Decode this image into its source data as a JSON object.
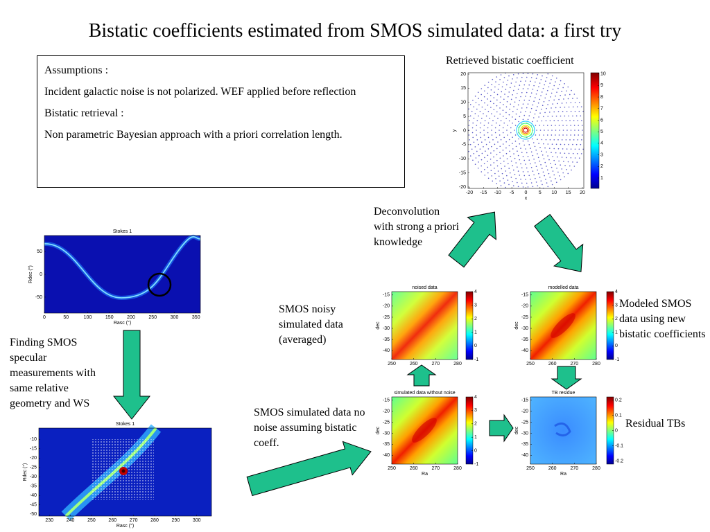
{
  "title": "Bistatic coefficients estimated from SMOS simulated data: a first try",
  "assumptions": [
    "Assumptions :",
    "Incident galactic noise is not polarized. WEF applied before reflection",
    "Bistatic retrieval :",
    "Non parametric Bayesian approach with a priori correlation length."
  ],
  "annotations": {
    "retrieved": "Retrieved bistatic coefficient",
    "deconvolution": "Deconvolution with strong a priori knowledge",
    "noisy": "SMOS noisy simulated data (averaged)",
    "modeled": "Modeled SMOS data using new bistatic coefficients",
    "finding": "Finding SMOS specular measurements with same relative geometry and WS",
    "no_noise": "SMOS simulated data no noise assuming bistatic coeff.",
    "residual": "Residual TBs"
  },
  "plots": [
    {
      "xlabel": "x",
      "ylabel": "y",
      "xlim": [
        -20.5,
        20.5
      ],
      "ylim": [
        -20.5,
        20.5
      ],
      "xticks": [
        -20,
        -15,
        -10,
        -5,
        0,
        5,
        10,
        15,
        20
      ],
      "yticks": [
        -20,
        -15,
        -10,
        -5,
        0,
        5,
        10,
        15,
        20
      ],
      "clim": [
        0.1,
        10.1
      ],
      "cticks": [
        1,
        2,
        3,
        4,
        5,
        6,
        7,
        8,
        9,
        10
      ]
    },
    {
      "title": "Stokes 1",
      "xlabel": "Rasc (°)",
      "ylabel": "Rdec (°)",
      "xlim": [
        0,
        360
      ],
      "ylim": [
        -85,
        85
      ],
      "xticks": [
        0,
        50,
        100,
        150,
        200,
        250,
        300,
        350
      ],
      "yticks": [
        -50,
        0,
        50
      ]
    },
    {
      "title": "Stokes 1",
      "xlabel": "Rasc (°)",
      "ylabel": "Rdec (°)",
      "xlim": [
        225,
        307
      ],
      "ylim": [
        -51,
        -4
      ],
      "xticks": [
        230,
        240,
        250,
        260,
        270,
        280,
        290,
        300
      ],
      "yticks": [
        -50,
        -45,
        -40,
        -35,
        -30,
        -25,
        -20,
        -15,
        -10
      ]
    },
    {
      "title": "noised data",
      "ylabel": "dec",
      "xlim": [
        250,
        280
      ],
      "ylim": [
        -44,
        -13.5
      ],
      "xticks": [
        250,
        260,
        270,
        280
      ],
      "yticks": [
        -40,
        -35,
        -30,
        -25,
        -20,
        -15
      ],
      "clim": [
        -1,
        4
      ],
      "cticks": [
        -1,
        0,
        1,
        2,
        3,
        4
      ]
    },
    {
      "title": "modelled data",
      "ylabel": "dec",
      "xlim": [
        250,
        280
      ],
      "ylim": [
        -44,
        -13.5
      ],
      "xticks": [
        250,
        260,
        270,
        280
      ],
      "yticks": [
        -40,
        -35,
        -30,
        -25,
        -20,
        -15
      ],
      "clim": [
        -1,
        4
      ],
      "cticks": [
        -1,
        0,
        1,
        2,
        3,
        4
      ]
    },
    {
      "title": "simulated data without noise",
      "xlabel": "Ra",
      "ylabel": "dec",
      "xlim": [
        250,
        280
      ],
      "ylim": [
        -44,
        -13.5
      ],
      "xticks": [
        250,
        260,
        270,
        280
      ],
      "yticks": [
        -40,
        -35,
        -30,
        -25,
        -20,
        -15
      ],
      "clim": [
        -1,
        4
      ],
      "cticks": [
        -1,
        0,
        1,
        2,
        3,
        4
      ]
    },
    {
      "title": "TB residue",
      "xlabel": "Ra",
      "ylabel": "dec",
      "xlim": [
        250,
        280
      ],
      "ylim": [
        -44,
        -13.5
      ],
      "xticks": [
        250,
        260,
        270,
        280
      ],
      "yticks": [
        -40,
        -35,
        -30,
        -25,
        -20,
        -15
      ],
      "clim": [
        -0.22,
        0.22
      ],
      "cticks": [
        -0.2,
        -0.1,
        0,
        0.1,
        0.2
      ]
    }
  ]
}
